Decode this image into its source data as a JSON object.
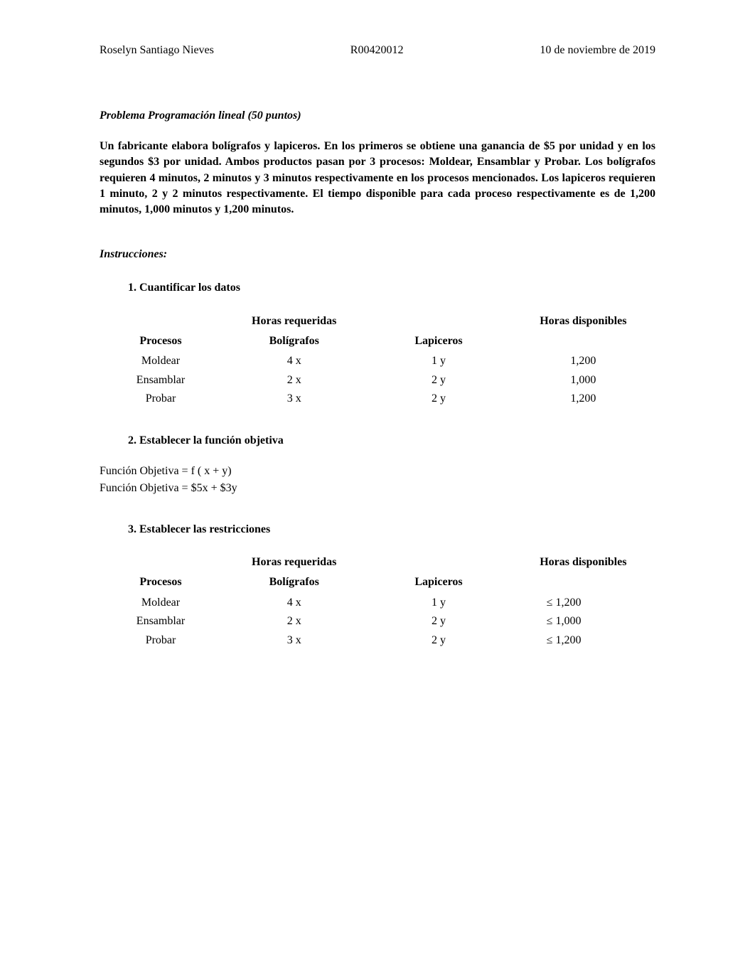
{
  "header": {
    "name": "Roselyn Santiago Nieves",
    "id": "R00420012",
    "date": "10 de noviembre de 2019"
  },
  "title": "Problema Programación lineal (50 puntos)",
  "problem": "Un fabricante elabora bolígrafos y lapiceros.  En los primeros se obtiene una ganancia de $5 por unidad y en los segundos $3 por unidad.  Ambos productos pasan por 3 procesos: Moldear, Ensamblar y Probar.   Los bolígrafos requieren 4 minutos, 2 minutos y 3 minutos respectivamente en los procesos mencionados. Los lapiceros requieren 1 minuto, 2 y 2 minutos respectivamente.  El tiempo disponible para cada proceso respectivamente es de 1,200 minutos, 1,000 minutos y 1,200 minutos.",
  "instrucciones_label": "Instrucciones:",
  "steps": {
    "s1": "1.   Cuantificar los datos",
    "s2": "2.   Establecer la función objetiva",
    "s3": "3.   Establecer las restricciones"
  },
  "table_headers": {
    "horas_req": "Horas requeridas",
    "horas_disp": "Horas disponibles",
    "procesos": "Procesos",
    "boligratos": "Bolígrafos",
    "lapiceros": "Lapiceros"
  },
  "table1": {
    "rows": [
      {
        "proc": "Moldear",
        "bol": "4 x",
        "lap": "1 y",
        "disp": "1,200"
      },
      {
        "proc": "Ensamblar",
        "bol": "2 x",
        "lap": "2 y",
        "disp": "1,000"
      },
      {
        "proc": "Probar",
        "bol": "3 x",
        "lap": "2 y",
        "disp": "1,200"
      }
    ]
  },
  "objective": {
    "line1": "Función Objetiva = f ( x + y)",
    "line2": "Función Objetiva = $5x + $3y"
  },
  "table2": {
    "rows": [
      {
        "proc": "Moldear",
        "bol": "4 x",
        "lap": "1 y",
        "disp": "≤   1,200"
      },
      {
        "proc": "Ensamblar",
        "bol": "2 x",
        "lap": "2 y",
        "disp": "≤   1,000"
      },
      {
        "proc": "Probar",
        "bol": "3 x",
        "lap": "2 y",
        "disp": "≤   1,200"
      }
    ]
  },
  "styling": {
    "body_width": 1062,
    "body_height": 1377,
    "background_color": "#ffffff",
    "text_color": "#000000",
    "font_family": "Times New Roman",
    "base_font_size": 16
  }
}
